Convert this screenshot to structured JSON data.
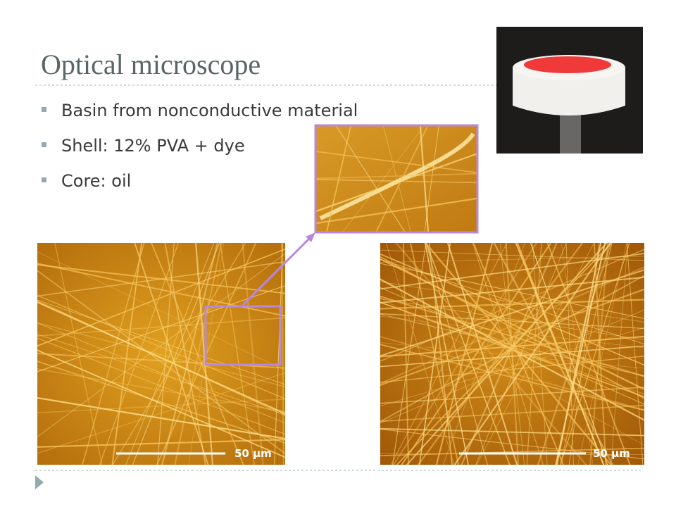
{
  "title": "Optical microscope",
  "bullets": [
    "Basin from nonconductive material",
    "Shell: 12% PVA + dye",
    "Core: oil"
  ],
  "scale_bars": {
    "left": "50 µm",
    "right": "50 µm"
  }
}
